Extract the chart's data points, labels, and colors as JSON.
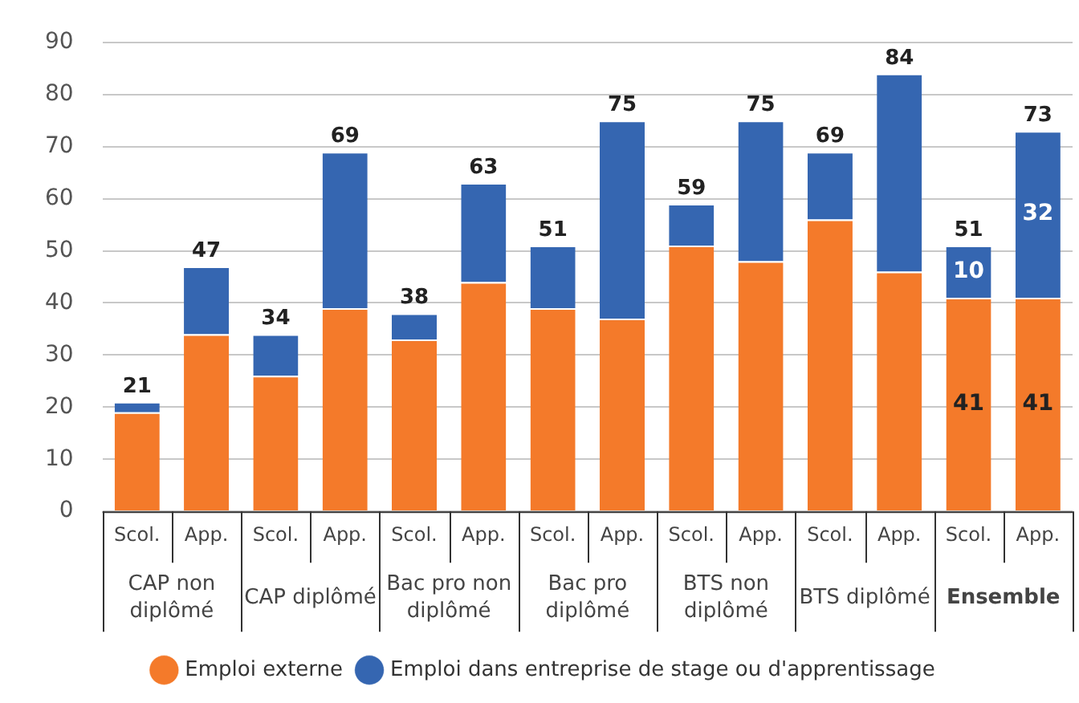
{
  "chart_data": {
    "type": "bar",
    "stacked": true,
    "categories": [
      "Scol.",
      "App.",
      "Scol.",
      "App.",
      "Scol.",
      "App.",
      "Scol.",
      "App.",
      "Scol.",
      "App.",
      "Scol.",
      "App.",
      "Scol.",
      "App."
    ],
    "series": [
      {
        "name": "Emploi externe",
        "color": "#f47a2a",
        "values": [
          19,
          34,
          26,
          39,
          33,
          44,
          39,
          37,
          51,
          48,
          56,
          46,
          41,
          41
        ],
        "value_labels": [
          null,
          null,
          null,
          null,
          null,
          null,
          null,
          null,
          null,
          null,
          null,
          null,
          "41",
          "41"
        ]
      },
      {
        "name": "Emploi dans entreprise de stage ou d'apprentissage",
        "color": "#3566b1",
        "values": [
          2,
          13,
          8,
          30,
          5,
          19,
          12,
          38,
          8,
          27,
          13,
          38,
          10,
          32
        ],
        "value_labels": [
          null,
          null,
          null,
          null,
          null,
          null,
          null,
          null,
          null,
          null,
          null,
          null,
          "10",
          "32"
        ]
      }
    ],
    "totals": [
      "21",
      "47",
      "34",
      "69",
      "38",
      "63",
      "51",
      "75",
      "59",
      "75",
      "69",
      "84",
      "51",
      "73"
    ],
    "annotations": [
      "CAP non diplômé",
      "CAP diplômé",
      "Bac pro non diplômé",
      "Bac pro diplômé",
      "BTS non diplômé",
      "BTS diplômé",
      "Ensemble"
    ],
    "ylim": [
      0,
      90
    ],
    "yticks": [
      0,
      10,
      20,
      30,
      40,
      50,
      60,
      70,
      80,
      90
    ],
    "grid": "y",
    "legend": "bottom",
    "marker": "circle"
  }
}
